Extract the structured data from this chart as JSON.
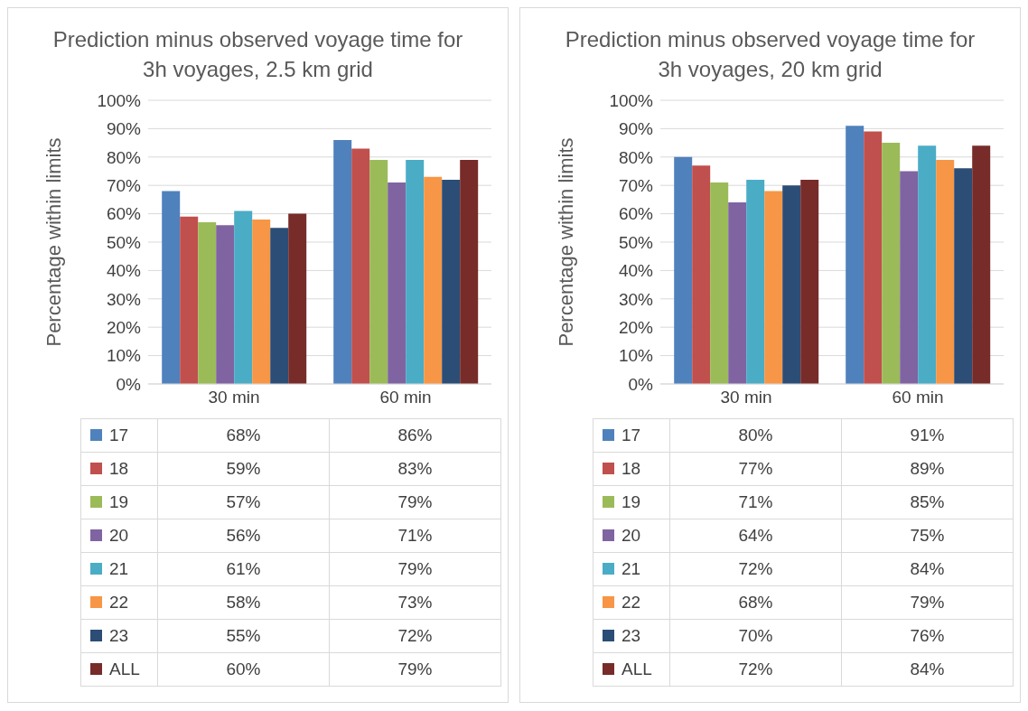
{
  "chart_data": [
    {
      "type": "bar",
      "title": "Prediction minus observed voyage time for 3h voyages, 2.5 km grid",
      "ylabel": "Percentage within limits",
      "categories": [
        "30 min",
        "60 min"
      ],
      "ylim": [
        0,
        100
      ],
      "yticks": [
        {
          "value": 0,
          "label": "0%"
        },
        {
          "value": 10,
          "label": "10%"
        },
        {
          "value": 20,
          "label": "20%"
        },
        {
          "value": 30,
          "label": "30%"
        },
        {
          "value": 40,
          "label": "40%"
        },
        {
          "value": 50,
          "label": "50%"
        },
        {
          "value": 60,
          "label": "60%"
        },
        {
          "value": 70,
          "label": "70%"
        },
        {
          "value": 80,
          "label": "80%"
        },
        {
          "value": 90,
          "label": "90%"
        },
        {
          "value": 100,
          "label": "100%"
        }
      ],
      "grid": "y",
      "legend": "bottom",
      "series": [
        {
          "name": "17",
          "color": "#4f81bd",
          "values": [
            68,
            86
          ],
          "value_labels": [
            "68%",
            "86%"
          ]
        },
        {
          "name": "18",
          "color": "#c0504d",
          "values": [
            59,
            83
          ],
          "value_labels": [
            "59%",
            "83%"
          ]
        },
        {
          "name": "19",
          "color": "#9bbb59",
          "values": [
            57,
            79
          ],
          "value_labels": [
            "57%",
            "79%"
          ]
        },
        {
          "name": "20",
          "color": "#8064a2",
          "values": [
            56,
            71
          ],
          "value_labels": [
            "56%",
            "71%"
          ]
        },
        {
          "name": "21",
          "color": "#4bacc6",
          "values": [
            61,
            79
          ],
          "value_labels": [
            "61%",
            "79%"
          ]
        },
        {
          "name": "22",
          "color": "#f79646",
          "values": [
            58,
            73
          ],
          "value_labels": [
            "58%",
            "73%"
          ]
        },
        {
          "name": "23",
          "color": "#2c4d75",
          "values": [
            55,
            72
          ],
          "value_labels": [
            "55%",
            "72%"
          ]
        },
        {
          "name": "ALL",
          "color": "#772c2a",
          "values": [
            60,
            79
          ],
          "value_labels": [
            "60%",
            "79%"
          ]
        }
      ]
    },
    {
      "type": "bar",
      "title": "Prediction minus observed voyage time for 3h voyages, 20 km grid",
      "ylabel": "Percentage within limits",
      "categories": [
        "30 min",
        "60 min"
      ],
      "ylim": [
        0,
        100
      ],
      "yticks": [
        {
          "value": 0,
          "label": "0%"
        },
        {
          "value": 10,
          "label": "10%"
        },
        {
          "value": 20,
          "label": "20%"
        },
        {
          "value": 30,
          "label": "30%"
        },
        {
          "value": 40,
          "label": "40%"
        },
        {
          "value": 50,
          "label": "50%"
        },
        {
          "value": 60,
          "label": "60%"
        },
        {
          "value": 70,
          "label": "70%"
        },
        {
          "value": 80,
          "label": "80%"
        },
        {
          "value": 90,
          "label": "90%"
        },
        {
          "value": 100,
          "label": "100%"
        }
      ],
      "grid": "y",
      "legend": "bottom",
      "series": [
        {
          "name": "17",
          "color": "#4f81bd",
          "values": [
            80,
            91
          ],
          "value_labels": [
            "80%",
            "91%"
          ]
        },
        {
          "name": "18",
          "color": "#c0504d",
          "values": [
            77,
            89
          ],
          "value_labels": [
            "77%",
            "89%"
          ]
        },
        {
          "name": "19",
          "color": "#9bbb59",
          "values": [
            71,
            85
          ],
          "value_labels": [
            "71%",
            "85%"
          ]
        },
        {
          "name": "20",
          "color": "#8064a2",
          "values": [
            64,
            75
          ],
          "value_labels": [
            "64%",
            "75%"
          ]
        },
        {
          "name": "21",
          "color": "#4bacc6",
          "values": [
            72,
            84
          ],
          "value_labels": [
            "72%",
            "84%"
          ]
        },
        {
          "name": "22",
          "color": "#f79646",
          "values": [
            68,
            79
          ],
          "value_labels": [
            "68%",
            "79%"
          ]
        },
        {
          "name": "23",
          "color": "#2c4d75",
          "values": [
            70,
            76
          ],
          "value_labels": [
            "70%",
            "76%"
          ]
        },
        {
          "name": "ALL",
          "color": "#772c2a",
          "values": [
            72,
            84
          ],
          "value_labels": [
            "72%",
            "84%"
          ]
        }
      ]
    }
  ]
}
